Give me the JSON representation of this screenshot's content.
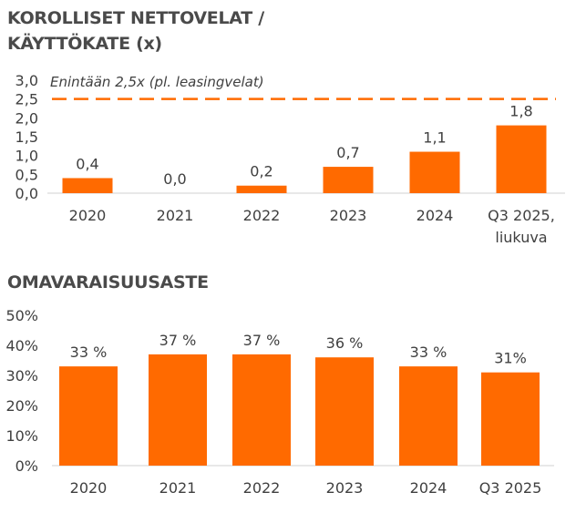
{
  "chart_data": [
    {
      "type": "bar",
      "title": "KOROLLISET NETTOVELAT / KÄYTTÖKATE (x)",
      "categories": [
        "2020",
        "2021",
        "2022",
        "2023",
        "2024",
        "Q3 2025,|liukuva"
      ],
      "values": [
        0.4,
        0.0,
        0.2,
        0.7,
        1.1,
        1.8
      ],
      "data_labels": [
        "0,4",
        "0,0",
        "0,2",
        "0,7",
        "1,1",
        "1,8"
      ],
      "yticks": [
        "0,0",
        "0,5",
        "1,0",
        "1,5",
        "2,0",
        "2,5",
        "3,0"
      ],
      "ylim": [
        0,
        3.0
      ],
      "reference_line": {
        "value": 2.5,
        "label": "Enintään 2,5x (pl. leasingvelat)",
        "style": "dashed"
      },
      "bar_color": "#FF6A00",
      "grid": false
    },
    {
      "type": "bar",
      "title": "OMAVARAISUUSASTE",
      "categories": [
        "2020",
        "2021",
        "2022",
        "2023",
        "2024",
        "Q3 2025"
      ],
      "values": [
        33,
        37,
        37,
        36,
        33,
        31
      ],
      "data_labels": [
        "33 %",
        "37 %",
        "37 %",
        "36 %",
        "33 %",
        "31%"
      ],
      "yticks": [
        "0%",
        "10%",
        "20%",
        "30%",
        "40%",
        "50%"
      ],
      "ylim": [
        0,
        50
      ],
      "bar_color": "#FF6A00",
      "grid": false
    }
  ]
}
